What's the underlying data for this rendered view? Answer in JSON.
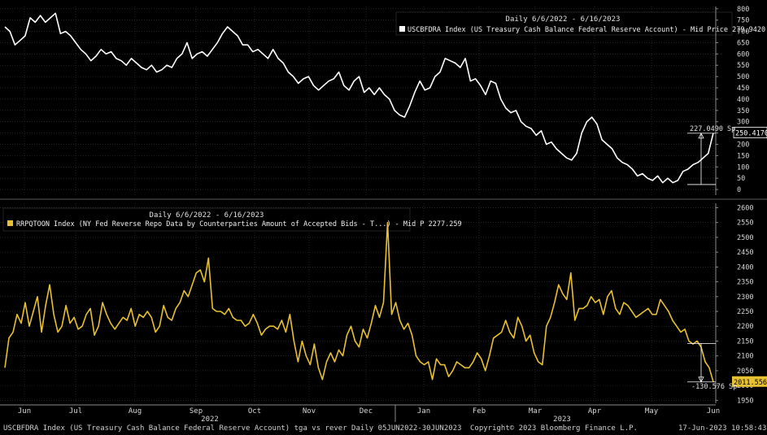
{
  "colors": {
    "background": "#000000",
    "grid": "#3a3a3a",
    "top_series": "#ffffff",
    "bottom_series": "#e8c130",
    "axis_text": "#d8d8d8"
  },
  "chart_data": [
    {
      "type": "line",
      "panel": "top",
      "header": "Daily 6/6/2022 - 6/16/2023",
      "legend": "USCBFDRA Index  (US Treasury Cash Balance Federal Reserve Account) - Mid Price 279.9420",
      "ylim": [
        -25,
        810
      ],
      "yticks": [
        0,
        50,
        100,
        150,
        200,
        250,
        300,
        350,
        400,
        450,
        500,
        550,
        600,
        650,
        700,
        750,
        800
      ],
      "last_value_label": "250.4170",
      "annotation": {
        "text": "227.0490 Sp",
        "from_value": 22,
        "to_value": 249
      },
      "values": [
        720,
        700,
        640,
        660,
        680,
        760,
        740,
        770,
        740,
        760,
        780,
        690,
        700,
        680,
        650,
        620,
        600,
        570,
        590,
        620,
        600,
        610,
        580,
        570,
        550,
        580,
        560,
        540,
        530,
        550,
        520,
        530,
        550,
        540,
        580,
        600,
        650,
        580,
        600,
        610,
        590,
        620,
        650,
        690,
        720,
        700,
        680,
        640,
        640,
        610,
        620,
        600,
        580,
        620,
        580,
        560,
        520,
        500,
        470,
        490,
        500,
        460,
        440,
        460,
        480,
        490,
        520,
        460,
        440,
        480,
        500,
        430,
        450,
        420,
        450,
        420,
        400,
        350,
        330,
        320,
        370,
        430,
        480,
        440,
        450,
        500,
        520,
        580,
        570,
        560,
        540,
        580,
        480,
        490,
        460,
        420,
        480,
        470,
        400,
        360,
        340,
        350,
        300,
        280,
        270,
        240,
        260,
        200,
        210,
        180,
        160,
        140,
        130,
        160,
        250,
        300,
        320,
        290,
        220,
        200,
        180,
        140,
        120,
        110,
        90,
        60,
        70,
        50,
        40,
        60,
        30,
        50,
        30,
        40,
        80,
        90,
        110,
        120,
        140,
        160,
        250
      ]
    },
    {
      "type": "line",
      "panel": "bottom",
      "header": "Daily 6/6/2022 - 6/16/2023",
      "legend": "RRPQTOON Index  (NY Fed Reverse Repo Data by Counterparties Amount of Accepted Bids - T...) - Mid P 2277.259",
      "ylim": [
        1940,
        2615
      ],
      "yticks": [
        1950,
        2000,
        2050,
        2100,
        2150,
        2200,
        2250,
        2300,
        2350,
        2400,
        2450,
        2500,
        2550,
        2600
      ],
      "last_value_label": "2011.556",
      "annotation": {
        "text": "-130.576 Sp",
        "from_value": 2142,
        "to_value": 2012
      },
      "values": [
        2060,
        2160,
        2180,
        2240,
        2210,
        2280,
        2200,
        2250,
        2300,
        2180,
        2270,
        2340,
        2240,
        2180,
        2200,
        2270,
        2210,
        2230,
        2190,
        2200,
        2240,
        2260,
        2170,
        2200,
        2280,
        2240,
        2210,
        2190,
        2210,
        2230,
        2220,
        2260,
        2200,
        2240,
        2230,
        2250,
        2230,
        2180,
        2200,
        2270,
        2230,
        2220,
        2260,
        2280,
        2320,
        2300,
        2340,
        2380,
        2390,
        2350,
        2430,
        2260,
        2250,
        2250,
        2240,
        2260,
        2230,
        2220,
        2220,
        2200,
        2210,
        2240,
        2210,
        2170,
        2190,
        2200,
        2200,
        2190,
        2220,
        2180,
        2240,
        2150,
        2080,
        2150,
        2100,
        2070,
        2140,
        2060,
        2020,
        2080,
        2110,
        2080,
        2120,
        2100,
        2170,
        2200,
        2150,
        2130,
        2190,
        2160,
        2210,
        2270,
        2230,
        2280,
        2550,
        2240,
        2280,
        2220,
        2190,
        2210,
        2170,
        2100,
        2080,
        2070,
        2080,
        2020,
        2090,
        2070,
        2070,
        2030,
        2050,
        2080,
        2070,
        2060,
        2060,
        2080,
        2110,
        2090,
        2050,
        2100,
        2160,
        2170,
        2180,
        2220,
        2180,
        2160,
        2230,
        2200,
        2150,
        2170,
        2110,
        2080,
        2070,
        2200,
        2230,
        2280,
        2340,
        2310,
        2290,
        2380,
        2220,
        2260,
        2260,
        2270,
        2300,
        2280,
        2290,
        2240,
        2300,
        2320,
        2260,
        2240,
        2280,
        2270,
        2250,
        2230,
        2240,
        2250,
        2260,
        2240,
        2240,
        2290,
        2270,
        2250,
        2220,
        2200,
        2180,
        2190,
        2150,
        2140,
        2150,
        2130,
        2080,
        2060,
        2012
      ]
    }
  ],
  "x_axis": {
    "months": [
      "Jun",
      "Jul",
      "Aug",
      "Sep",
      "Oct",
      "Nov",
      "Dec",
      "Jan",
      "Feb",
      "Mar",
      "Apr",
      "May",
      "Jun"
    ],
    "years": [
      "2022",
      "2023"
    ]
  },
  "footer": {
    "left": "USCBFDRA Index (US Treasury Cash Balance Federal Reserve Account) tga vs rever  Daily 05JUN2022-30JUN2023",
    "center": "Copyright© 2023 Bloomberg Finance L.P.",
    "right": "17-Jun-2023 10:58:43"
  }
}
